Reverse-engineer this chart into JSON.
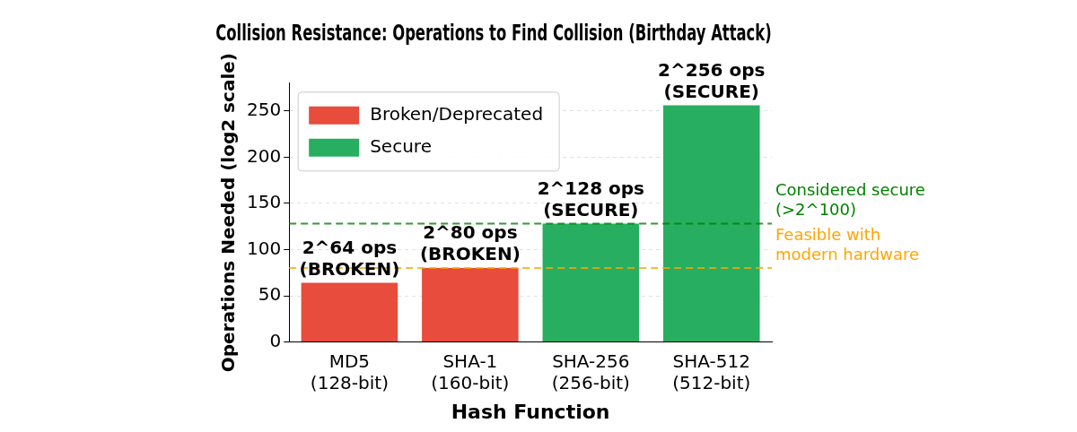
{
  "chart_data": {
    "type": "bar",
    "title": "Collision Resistance: Operations to Find Collision (Birthday Attack)",
    "xlabel": "Hash Function",
    "ylabel": "Operations Needed (log2 scale)",
    "categories": [
      "MD5\n(128-bit)",
      "SHA-1\n(160-bit)",
      "SHA-256\n(256-bit)",
      "SHA-512\n(512-bit)"
    ],
    "series": [
      {
        "name": "Broken/Deprecated",
        "color": "#e74c3c",
        "values": [
          64,
          80,
          null,
          null
        ],
        "value_labels": [
          "2^64 ops\n(BROKEN)",
          "2^80 ops\n(BROKEN)",
          null,
          null
        ]
      },
      {
        "name": "Secure",
        "color": "#27ae60",
        "values": [
          null,
          null,
          128,
          256
        ],
        "value_labels": [
          null,
          null,
          "2^128 ops\n(SECURE)",
          "2^256 ops\n(SECURE)"
        ]
      }
    ],
    "ylim": [
      0,
      280
    ],
    "yticks": [
      0,
      50,
      100,
      150,
      200,
      250
    ],
    "grid": "y",
    "legend": "top left",
    "ref_lines": [
      {
        "axis": "y",
        "value": 128,
        "label": "Considered secure\n(>2^100)",
        "color": "#008000",
        "line_style": "dashed"
      },
      {
        "axis": "y",
        "value": 80,
        "label": "Feasible with\nmodern hardware",
        "color": "#ffa500",
        "line_style": "dashed"
      }
    ]
  }
}
